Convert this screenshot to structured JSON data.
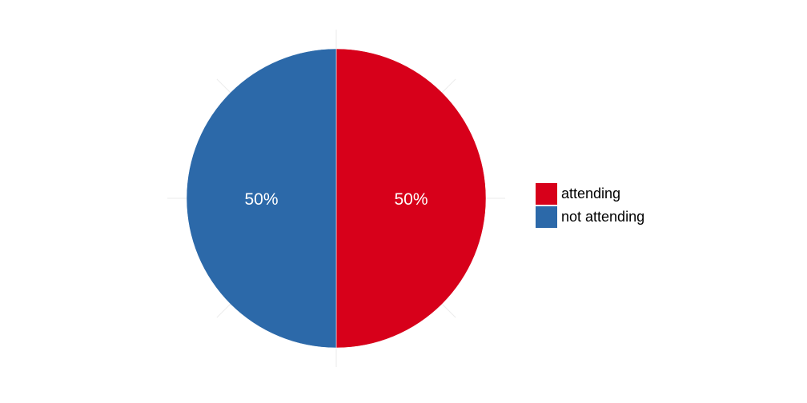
{
  "chart_data": {
    "type": "pie",
    "categories": [
      "attending",
      "not attending"
    ],
    "values": [
      50,
      50
    ],
    "labels": [
      "50%",
      "50%"
    ],
    "colors": [
      "#d7001a",
      "#2c69a9"
    ],
    "legend": "right",
    "grid": true
  },
  "legend": {
    "items": [
      {
        "label": "attending",
        "color": "#d7001a"
      },
      {
        "label": "not attending",
        "color": "#2c69a9"
      }
    ]
  }
}
